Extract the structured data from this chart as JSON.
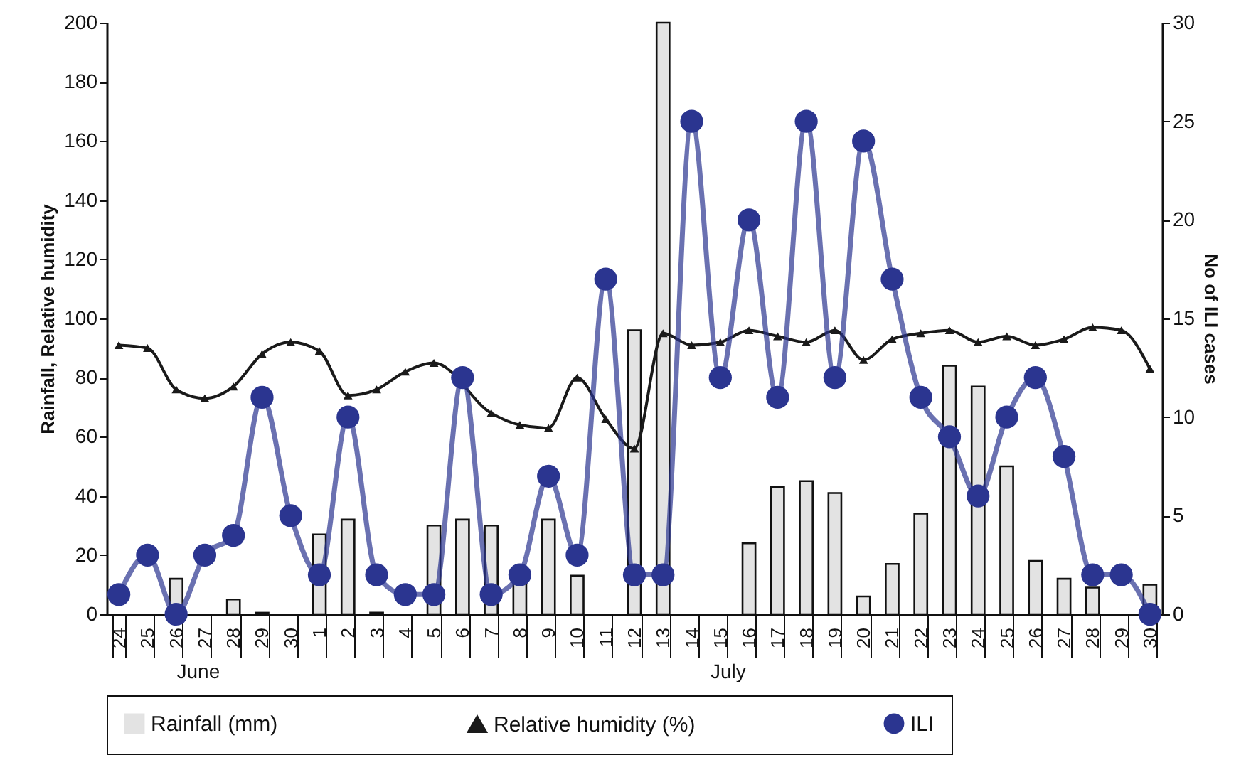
{
  "chart_data": {
    "type": "bar",
    "categories": [
      "24",
      "25",
      "26",
      "27",
      "28",
      "29",
      "30",
      "1",
      "2",
      "3",
      "4",
      "5",
      "6",
      "7",
      "8",
      "9",
      "10",
      "11",
      "12",
      "13",
      "14",
      "15",
      "16",
      "17",
      "18",
      "19",
      "20",
      "21",
      "22",
      "23",
      "24",
      "25",
      "26",
      "27",
      "28",
      "29",
      "30"
    ],
    "ylabel": "Rainfall,  Relative humidity",
    "y2label": "No of ILI cases",
    "ylim": [
      0,
      200
    ],
    "yticks": [
      0,
      20,
      40,
      60,
      80,
      100,
      120,
      140,
      160,
      180,
      200
    ],
    "y2lim": [
      0,
      30
    ],
    "y2ticks": [
      0,
      5,
      10,
      15,
      20,
      25,
      30
    ],
    "legend": "bottom",
    "annotations": [
      "June",
      "July"
    ],
    "series": [
      {
        "name": "Rainfall (mm)",
        "color": "#e3e3e3",
        "values": [
          null,
          0,
          12,
          0,
          5,
          0.5,
          0,
          27,
          32,
          0.5,
          null,
          30,
          32,
          30,
          11,
          32,
          13,
          0,
          96,
          200,
          0,
          0,
          24,
          43,
          45,
          41,
          6,
          17,
          34,
          84,
          77,
          50,
          18,
          12,
          9,
          0,
          10
        ]
      },
      {
        "name": "Relative humidity (%)",
        "type": "line",
        "marker": "triangle",
        "color": "#1a1a1a",
        "values": [
          91,
          90,
          76,
          73,
          77,
          88,
          92,
          89,
          74,
          76,
          82,
          85,
          null,
          68,
          64,
          63,
          80,
          66,
          56,
          95,
          91,
          92,
          96,
          94,
          92,
          96,
          86,
          93,
          95,
          96,
          92,
          94,
          91,
          93,
          97,
          96,
          83
        ]
      },
      {
        "name": "ILI",
        "type": "line",
        "marker": "circle",
        "axis": "y2",
        "color": "#2b3590",
        "values": [
          1,
          3,
          0,
          3,
          4,
          11,
          5,
          2,
          10,
          2,
          1,
          1,
          12,
          1,
          2,
          7,
          3,
          17,
          2,
          2,
          25,
          12,
          20,
          11,
          25,
          12,
          24,
          17,
          11,
          9,
          6,
          10,
          12,
          8,
          2,
          2,
          0
        ]
      }
    ]
  }
}
